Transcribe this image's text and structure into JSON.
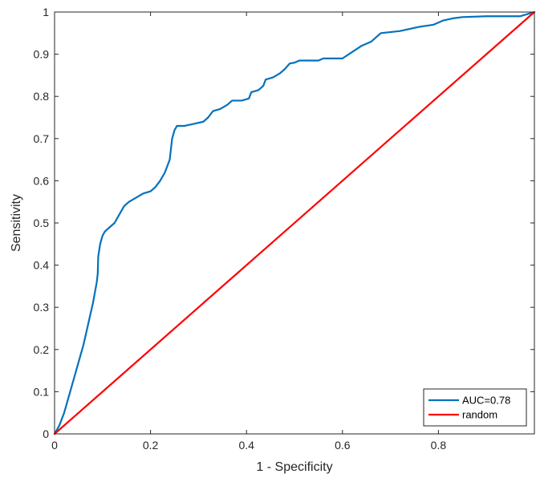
{
  "chart_data": {
    "type": "line",
    "xlabel": "1 - Specificity",
    "ylabel": "Sensitivity",
    "xlim": [
      0,
      1
    ],
    "ylim": [
      0,
      1
    ],
    "x_ticks": [
      "0",
      "0.2",
      "0.4",
      "0.6",
      "0.8"
    ],
    "y_ticks": [
      "0",
      "0.1",
      "0.2",
      "0.3",
      "0.4",
      "0.5",
      "0.6",
      "0.7",
      "0.8",
      "0.9",
      "1"
    ],
    "grid": false,
    "legend_position": "bottom-right",
    "series": [
      {
        "name": "AUC=0.78",
        "color": "#0072BD",
        "points": [
          [
            0,
            0
          ],
          [
            0.005,
            0.01
          ],
          [
            0.01,
            0.02
          ],
          [
            0.015,
            0.035
          ],
          [
            0.02,
            0.05
          ],
          [
            0.03,
            0.09
          ],
          [
            0.04,
            0.13
          ],
          [
            0.05,
            0.17
          ],
          [
            0.06,
            0.21
          ],
          [
            0.07,
            0.26
          ],
          [
            0.08,
            0.31
          ],
          [
            0.088,
            0.36
          ],
          [
            0.09,
            0.38
          ],
          [
            0.091,
            0.42
          ],
          [
            0.095,
            0.45
          ],
          [
            0.1,
            0.47
          ],
          [
            0.105,
            0.48
          ],
          [
            0.115,
            0.49
          ],
          [
            0.125,
            0.5
          ],
          [
            0.135,
            0.52
          ],
          [
            0.145,
            0.54
          ],
          [
            0.155,
            0.55
          ],
          [
            0.17,
            0.56
          ],
          [
            0.185,
            0.57
          ],
          [
            0.2,
            0.575
          ],
          [
            0.21,
            0.585
          ],
          [
            0.22,
            0.6
          ],
          [
            0.23,
            0.62
          ],
          [
            0.24,
            0.65
          ],
          [
            0.245,
            0.7
          ],
          [
            0.25,
            0.72
          ],
          [
            0.255,
            0.73
          ],
          [
            0.27,
            0.73
          ],
          [
            0.29,
            0.735
          ],
          [
            0.31,
            0.74
          ],
          [
            0.32,
            0.75
          ],
          [
            0.33,
            0.765
          ],
          [
            0.345,
            0.77
          ],
          [
            0.36,
            0.78
          ],
          [
            0.37,
            0.79
          ],
          [
            0.39,
            0.79
          ],
          [
            0.405,
            0.795
          ],
          [
            0.41,
            0.81
          ],
          [
            0.425,
            0.815
          ],
          [
            0.435,
            0.825
          ],
          [
            0.44,
            0.84
          ],
          [
            0.455,
            0.845
          ],
          [
            0.47,
            0.855
          ],
          [
            0.48,
            0.865
          ],
          [
            0.49,
            0.878
          ],
          [
            0.5,
            0.88
          ],
          [
            0.51,
            0.885
          ],
          [
            0.55,
            0.885
          ],
          [
            0.56,
            0.89
          ],
          [
            0.6,
            0.89
          ],
          [
            0.62,
            0.905
          ],
          [
            0.64,
            0.92
          ],
          [
            0.66,
            0.93
          ],
          [
            0.67,
            0.94
          ],
          [
            0.68,
            0.95
          ],
          [
            0.72,
            0.955
          ],
          [
            0.74,
            0.96
          ],
          [
            0.76,
            0.965
          ],
          [
            0.79,
            0.97
          ],
          [
            0.8,
            0.975
          ],
          [
            0.81,
            0.98
          ],
          [
            0.83,
            0.985
          ],
          [
            0.85,
            0.988
          ],
          [
            0.9,
            0.99
          ],
          [
            0.97,
            0.99
          ],
          [
            1,
            1
          ]
        ]
      },
      {
        "name": "random",
        "color": "#FF0000",
        "points": [
          [
            0,
            0
          ],
          [
            1,
            1
          ]
        ]
      }
    ]
  }
}
